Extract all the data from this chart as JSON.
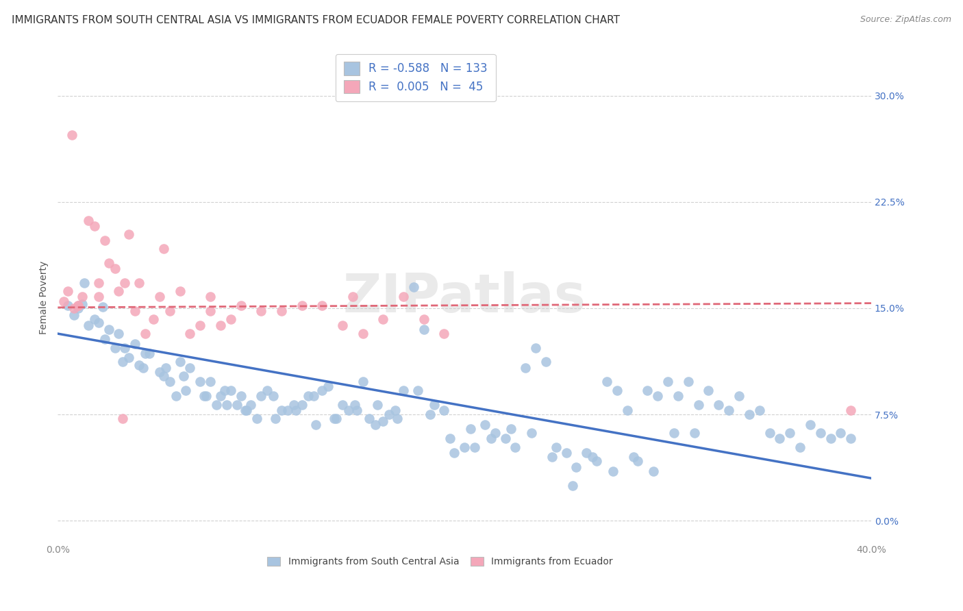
{
  "title": "IMMIGRANTS FROM SOUTH CENTRAL ASIA VS IMMIGRANTS FROM ECUADOR FEMALE POVERTY CORRELATION CHART",
  "source": "Source: ZipAtlas.com",
  "ylabel": "Female Poverty",
  "ytick_labels": [
    "0.0%",
    "7.5%",
    "15.0%",
    "22.5%",
    "30.0%"
  ],
  "ytick_values": [
    0.0,
    7.5,
    15.0,
    22.5,
    30.0
  ],
  "xlim": [
    0.0,
    40.0
  ],
  "ylim": [
    -1.5,
    33.0
  ],
  "legend_label_blue": "Immigrants from South Central Asia",
  "legend_label_pink": "Immigrants from Ecuador",
  "color_blue": "#a8c4e0",
  "color_pink": "#f4a7b9",
  "color_blue_text": "#4472c4",
  "color_pink_text": "#e06878",
  "trendline_blue": [
    0.0,
    13.2,
    40.0,
    3.0
  ],
  "trendline_pink": [
    0.0,
    15.05,
    40.0,
    15.35
  ],
  "blue_x": [
    0.5,
    0.8,
    1.0,
    1.2,
    1.5,
    1.8,
    2.0,
    2.2,
    2.5,
    2.8,
    3.0,
    3.2,
    3.5,
    3.8,
    4.0,
    4.2,
    4.5,
    5.0,
    5.2,
    5.5,
    5.8,
    6.0,
    6.2,
    6.5,
    7.0,
    7.2,
    7.5,
    7.8,
    8.0,
    8.2,
    8.5,
    8.8,
    9.0,
    9.2,
    9.5,
    9.8,
    10.0,
    10.3,
    10.6,
    11.0,
    11.3,
    11.6,
    12.0,
    12.3,
    12.6,
    13.0,
    13.3,
    13.6,
    14.0,
    14.3,
    14.6,
    15.0,
    15.3,
    15.6,
    16.0,
    16.3,
    16.6,
    17.0,
    17.5,
    18.0,
    18.5,
    19.0,
    19.5,
    20.0,
    20.5,
    21.0,
    21.5,
    22.0,
    22.5,
    23.0,
    23.5,
    24.0,
    24.5,
    25.0,
    25.5,
    26.0,
    26.5,
    27.0,
    27.5,
    28.0,
    28.5,
    29.0,
    29.5,
    30.0,
    30.5,
    31.0,
    31.5,
    32.0,
    32.5,
    33.0,
    33.5,
    34.0,
    34.5,
    35.0,
    35.5,
    36.0,
    36.5,
    37.0,
    37.5,
    38.0,
    38.5,
    39.0,
    1.3,
    2.3,
    3.3,
    4.3,
    5.3,
    6.3,
    7.3,
    8.3,
    9.3,
    10.7,
    11.7,
    12.7,
    13.7,
    14.7,
    15.7,
    16.7,
    17.7,
    18.3,
    19.3,
    20.3,
    21.3,
    22.3,
    23.3,
    24.3,
    25.3,
    26.3,
    27.3,
    28.3,
    29.3,
    30.3,
    31.3
  ],
  "blue_y": [
    15.2,
    14.5,
    15.0,
    15.3,
    13.8,
    14.2,
    14.0,
    15.1,
    13.5,
    12.2,
    13.2,
    11.2,
    11.5,
    12.5,
    11.0,
    10.8,
    11.8,
    10.5,
    10.2,
    9.8,
    8.8,
    11.2,
    10.2,
    10.8,
    9.8,
    8.8,
    9.8,
    8.2,
    8.8,
    9.2,
    9.2,
    8.2,
    8.8,
    7.8,
    8.2,
    7.2,
    8.8,
    9.2,
    8.8,
    7.8,
    7.8,
    8.2,
    8.2,
    8.8,
    8.8,
    9.2,
    9.5,
    7.2,
    8.2,
    7.8,
    8.2,
    9.8,
    7.2,
    6.8,
    7.0,
    7.5,
    7.8,
    9.2,
    16.5,
    13.5,
    8.2,
    7.8,
    4.8,
    5.2,
    5.2,
    6.8,
    6.2,
    5.8,
    5.2,
    10.8,
    12.2,
    11.2,
    5.2,
    4.8,
    3.8,
    4.8,
    4.2,
    9.8,
    9.2,
    7.8,
    4.2,
    9.2,
    8.8,
    9.8,
    8.8,
    9.8,
    8.2,
    9.2,
    8.2,
    7.8,
    8.8,
    7.5,
    7.8,
    6.2,
    5.8,
    6.2,
    5.2,
    6.8,
    6.2,
    5.8,
    6.2,
    5.8,
    16.8,
    12.8,
    12.2,
    11.8,
    10.8,
    9.2,
    8.8,
    8.2,
    7.8,
    7.2,
    7.8,
    6.8,
    7.2,
    7.8,
    8.2,
    7.2,
    9.2,
    7.5,
    5.8,
    6.5,
    5.8,
    6.5,
    6.2,
    4.5,
    2.5,
    4.5,
    3.5,
    4.5,
    3.5,
    6.2,
    6.2
  ],
  "pink_x": [
    0.3,
    0.5,
    0.8,
    1.0,
    1.2,
    1.5,
    1.8,
    2.0,
    2.3,
    2.5,
    2.8,
    3.0,
    3.3,
    3.5,
    3.8,
    4.0,
    4.3,
    4.7,
    5.0,
    5.5,
    6.0,
    6.5,
    7.0,
    7.5,
    8.0,
    8.5,
    9.0,
    10.0,
    11.0,
    12.0,
    13.0,
    14.0,
    15.0,
    16.0,
    17.0,
    18.0,
    19.0,
    39.0,
    1.0,
    2.0,
    3.2,
    5.2,
    7.5,
    14.5,
    0.7
  ],
  "pink_y": [
    15.5,
    16.2,
    15.0,
    15.2,
    15.8,
    21.2,
    20.8,
    16.8,
    19.8,
    18.2,
    17.8,
    16.2,
    16.8,
    20.2,
    14.8,
    16.8,
    13.2,
    14.2,
    15.8,
    14.8,
    16.2,
    13.2,
    13.8,
    14.8,
    13.8,
    14.2,
    15.2,
    14.8,
    14.8,
    15.2,
    15.2,
    13.8,
    13.2,
    14.2,
    15.8,
    14.2,
    13.2,
    7.8,
    15.2,
    15.8,
    7.2,
    19.2,
    15.8,
    15.8,
    27.2
  ],
  "watermark": "ZIPatlas",
  "background_color": "#ffffff",
  "grid_color": "#cccccc"
}
